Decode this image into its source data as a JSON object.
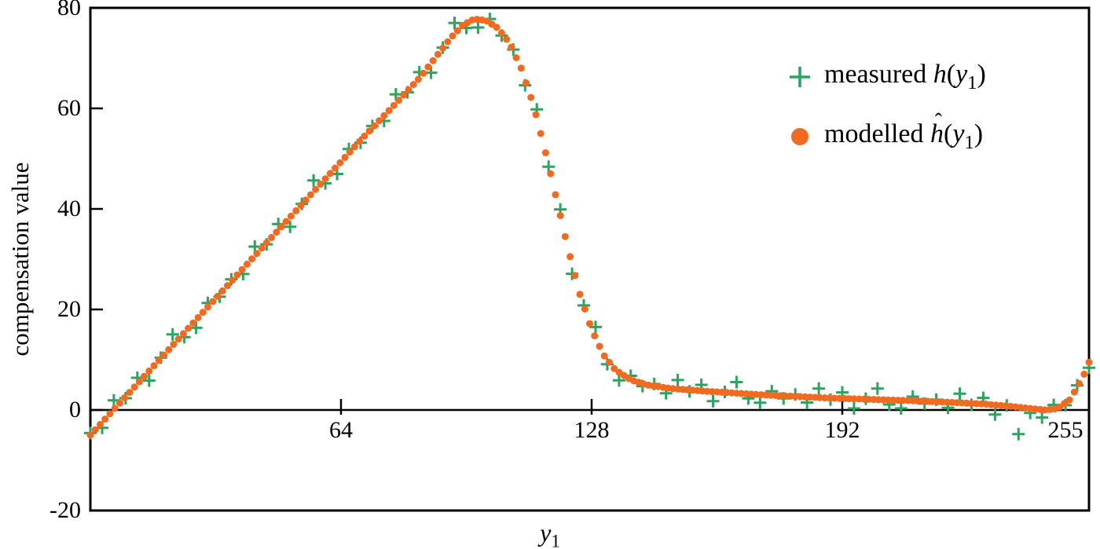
{
  "figure": {
    "ylabel": "compensation value",
    "xlabel": {
      "base": "y",
      "sub": "1"
    }
  },
  "legend": {
    "items": [
      {
        "marker": "plus",
        "color": "#2aa45e",
        "prefix": "measured ",
        "func": "h",
        "hat": "",
        "open": "(",
        "arg": "y",
        "sub": "1",
        "close": ")"
      },
      {
        "marker": "dot",
        "color": "#f06a21",
        "prefix": "modelled ",
        "func": "h",
        "hat": "ˆ",
        "open": "(",
        "arg": "y",
        "sub": "1",
        "close": ")"
      }
    ]
  },
  "chart_data": {
    "type": "scatter",
    "title": "",
    "xlabel": "y_1",
    "ylabel": "compensation value",
    "xlim": [
      0,
      255
    ],
    "ylim": [
      -20,
      80
    ],
    "xticks": [
      64,
      128,
      192,
      255
    ],
    "yticks": [
      -20,
      0,
      20,
      40,
      60,
      80
    ],
    "grid": false,
    "legend_position": "top-right",
    "axis_color": "#000000",
    "series": [
      {
        "name": "measured h(y1)",
        "marker": "plus",
        "color": "#2aa45e",
        "x": [
          0,
          3,
          6,
          9,
          12,
          15,
          18,
          21,
          24,
          27,
          30,
          33,
          36,
          39,
          42,
          45,
          48,
          51,
          54,
          57,
          60,
          63,
          66,
          69,
          72,
          75,
          78,
          81,
          84,
          87,
          90,
          93,
          96,
          99,
          102,
          105,
          108,
          111,
          114,
          117,
          120,
          123,
          126,
          129,
          132,
          135,
          138,
          141,
          144,
          147,
          150,
          153,
          156,
          159,
          162,
          165,
          168,
          171,
          174,
          177,
          180,
          183,
          186,
          189,
          192,
          195,
          198,
          201,
          204,
          207,
          210,
          213,
          216,
          219,
          222,
          225,
          228,
          231,
          234,
          237,
          240,
          243,
          246,
          249,
          252,
          255
        ],
        "y": [
          -4.6,
          -3.55,
          1.9,
          2.35,
          6.4,
          5.85,
          10.4,
          15.05,
          14.5,
          16.35,
          21.3,
          22.55,
          26,
          27.05,
          32.5,
          32.95,
          37,
          36.45,
          41,
          45.65,
          45.1,
          46.95,
          51.9,
          53.15,
          56.5,
          57.5,
          62.8,
          63.2,
          67.2,
          67.1,
          72.1,
          77,
          76,
          76.1,
          77.8,
          74.5,
          71.7,
          64.6,
          59.8,
          48.4,
          39.9,
          27.1,
          20.8,
          16.5,
          9.1,
          5.9,
          6.8,
          4.75,
          5.17,
          3.32,
          5.95,
          3.69,
          5,
          1.75,
          3.6,
          5.55,
          2.3,
          1.45,
          3.73,
          2.31,
          3.1,
          1.49,
          4.27,
          2.06,
          3.5,
          0.32,
          2.25,
          4.27,
          1.1,
          0.32,
          2.65,
          1.27,
          2.05,
          0.44,
          3.23,
          1.01,
          2.4,
          -0.9,
          0.9,
          -4.8,
          -0.6,
          -1.5,
          1,
          0.95,
          4.9,
          8.4
        ]
      },
      {
        "name": "modelled h_hat(y1)",
        "marker": "dot",
        "color": "#f06a21",
        "interpolate_step": 1.25,
        "x": [
          0,
          10,
          20,
          30,
          40,
          50,
          60,
          70,
          78,
          84,
          88,
          92,
          95,
          98,
          101,
          104,
          107,
          110,
          113,
          116,
          119,
          122,
          125,
          128,
          131,
          134,
          138,
          142,
          148,
          156,
          164,
          172,
          180,
          188,
          196,
          204,
          212,
          220,
          228,
          234,
          240,
          244,
          247,
          250,
          252,
          254,
          255
        ],
        "y": [
          -5,
          3.5,
          12,
          20.5,
          29,
          37.5,
          46,
          54.5,
          61,
          66,
          70,
          74,
          76.5,
          77.8,
          77.5,
          76,
          73,
          68,
          61,
          52,
          42,
          32,
          23,
          16,
          11,
          8,
          6,
          5,
          4.3,
          3.8,
          3.4,
          3.0,
          2.7,
          2.4,
          2.2,
          2.0,
          1.8,
          1.5,
          1.2,
          0.8,
          0.3,
          0,
          0.3,
          2,
          4.5,
          7.5,
          9.5
        ]
      }
    ]
  }
}
